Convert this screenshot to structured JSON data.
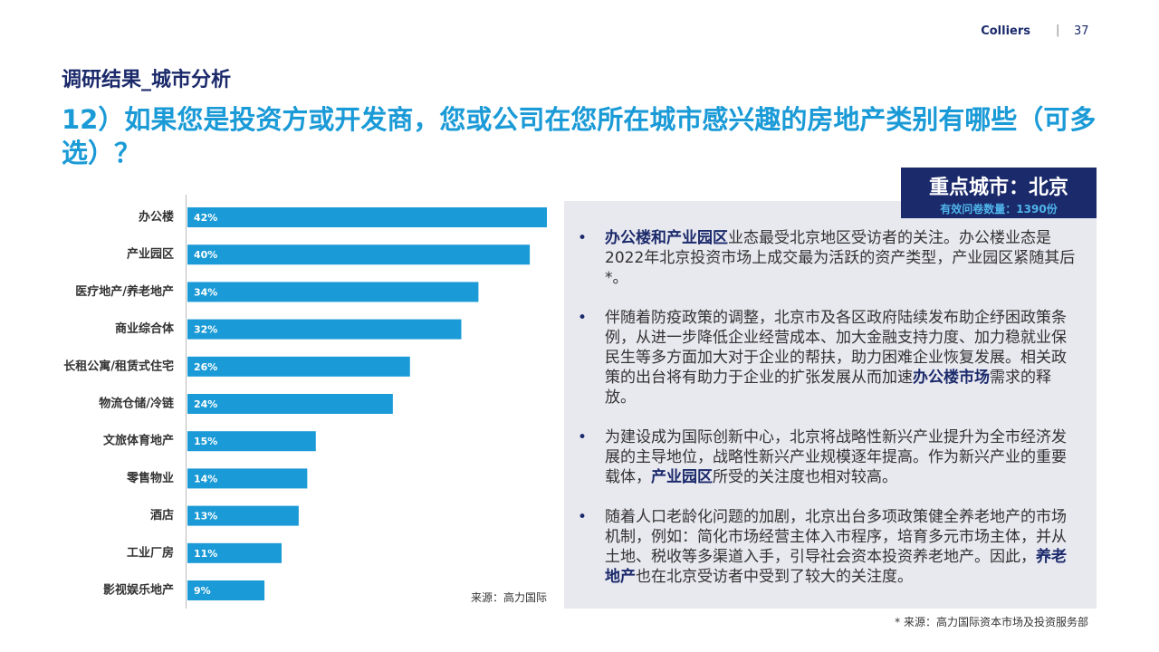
{
  "header": {
    "brand": "Colliers",
    "separator": "|",
    "page": "37"
  },
  "subtitle": "调研结果_城市分析",
  "title": "12）如果您是投资方或开发商，您或公司在您所在城市感兴趣的房地产类别有哪些（可多选）？",
  "city_box": {
    "name": "重点城市：北京",
    "count": "有效问卷数量：1390份"
  },
  "chart_data": {
    "type": "bar",
    "orientation": "horizontal",
    "categories": [
      "办公楼",
      "产业园区",
      "医疗地产/养老地产",
      "商业综合体",
      "长租公寓/租赁式住宅",
      "物流仓储/冷链",
      "文旅体育地产",
      "零售物业",
      "酒店",
      "工业厂房",
      "影视娱乐地产"
    ],
    "values": [
      42,
      40,
      34,
      32,
      26,
      24,
      15,
      14,
      13,
      11,
      9
    ],
    "value_labels": [
      "42%",
      "40%",
      "34%",
      "32%",
      "26%",
      "24%",
      "15%",
      "14%",
      "13%",
      "11%",
      "9%"
    ],
    "color": "#1a9ad6",
    "xlim": [
      0,
      42
    ],
    "source": "来源：高力国际"
  },
  "bullets": [
    [
      {
        "text": "办公楼和产业园区",
        "highlight": true
      },
      {
        "text": "业态最受北京地区受访者的关注。办公楼业态是2022年北京投资市场上成交最为活跃的资产类型，产业园区紧随其后*。",
        "highlight": false
      }
    ],
    [
      {
        "text": "伴随着防疫政策的调整，北京市及各区政府陆续发布助企纾困政策条例，从进一步降低企业经营成本、加大金融支持力度、加力稳就业保民生等多方面加大对于企业的帮扶，助力困难企业恢复发展。相关政策的出台将有助力于企业的扩张发展从而加速",
        "highlight": false
      },
      {
        "text": "办公楼市场",
        "highlight": true
      },
      {
        "text": "需求的释放。",
        "highlight": false
      }
    ],
    [
      {
        "text": "为建设成为国际创新中心，北京将战略性新兴产业提升为全市经济发展的主导地位，战略性新兴产业规模逐年提高。作为新兴产业的重要载体，",
        "highlight": false
      },
      {
        "text": "产业园区",
        "highlight": true
      },
      {
        "text": "所受的关注度也相对较高。",
        "highlight": false
      }
    ],
    [
      {
        "text": "随着人口老龄化问题的加剧，北京出台多项政策健全养老地产的市场机制，例如：简化市场经营主体入市程序，培育多元市场主体，并从土地、税收等多渠道入手，引导社会资本投资养老地产。因此，",
        "highlight": false
      },
      {
        "text": "养老地产",
        "highlight": true
      },
      {
        "text": "也在北京受访者中受到了较大的关注度。",
        "highlight": false
      }
    ]
  ],
  "footnote": "* 来源：高力国际资本市场及投资服务部"
}
